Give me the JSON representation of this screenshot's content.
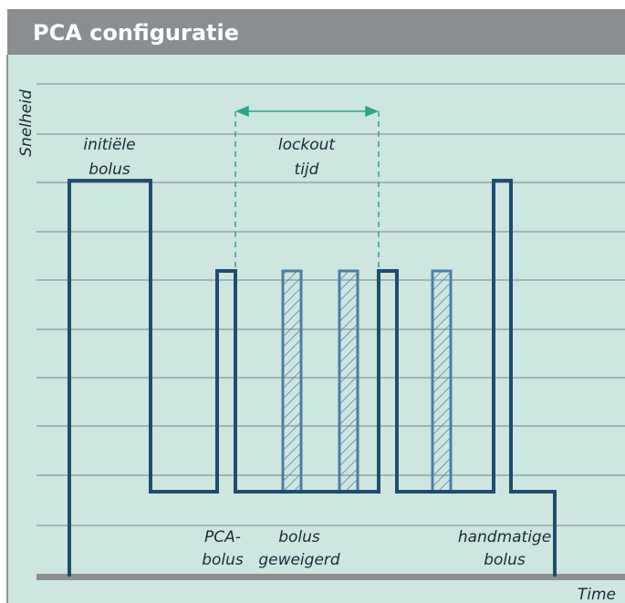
{
  "header": {
    "title": "PCA configuratie"
  },
  "axes": {
    "y_label": "Snelheid",
    "x_label": "Time"
  },
  "annotations": [
    {
      "lines": [
        "initiële",
        "bolus"
      ]
    },
    {
      "lines": [
        "lockout",
        "tijd"
      ]
    },
    {
      "lines": [
        "PCA-",
        "bolus"
      ]
    },
    {
      "lines": [
        "bolus",
        "geweigerd"
      ]
    },
    {
      "lines": [
        "handmatige",
        "bolus"
      ]
    }
  ]
}
